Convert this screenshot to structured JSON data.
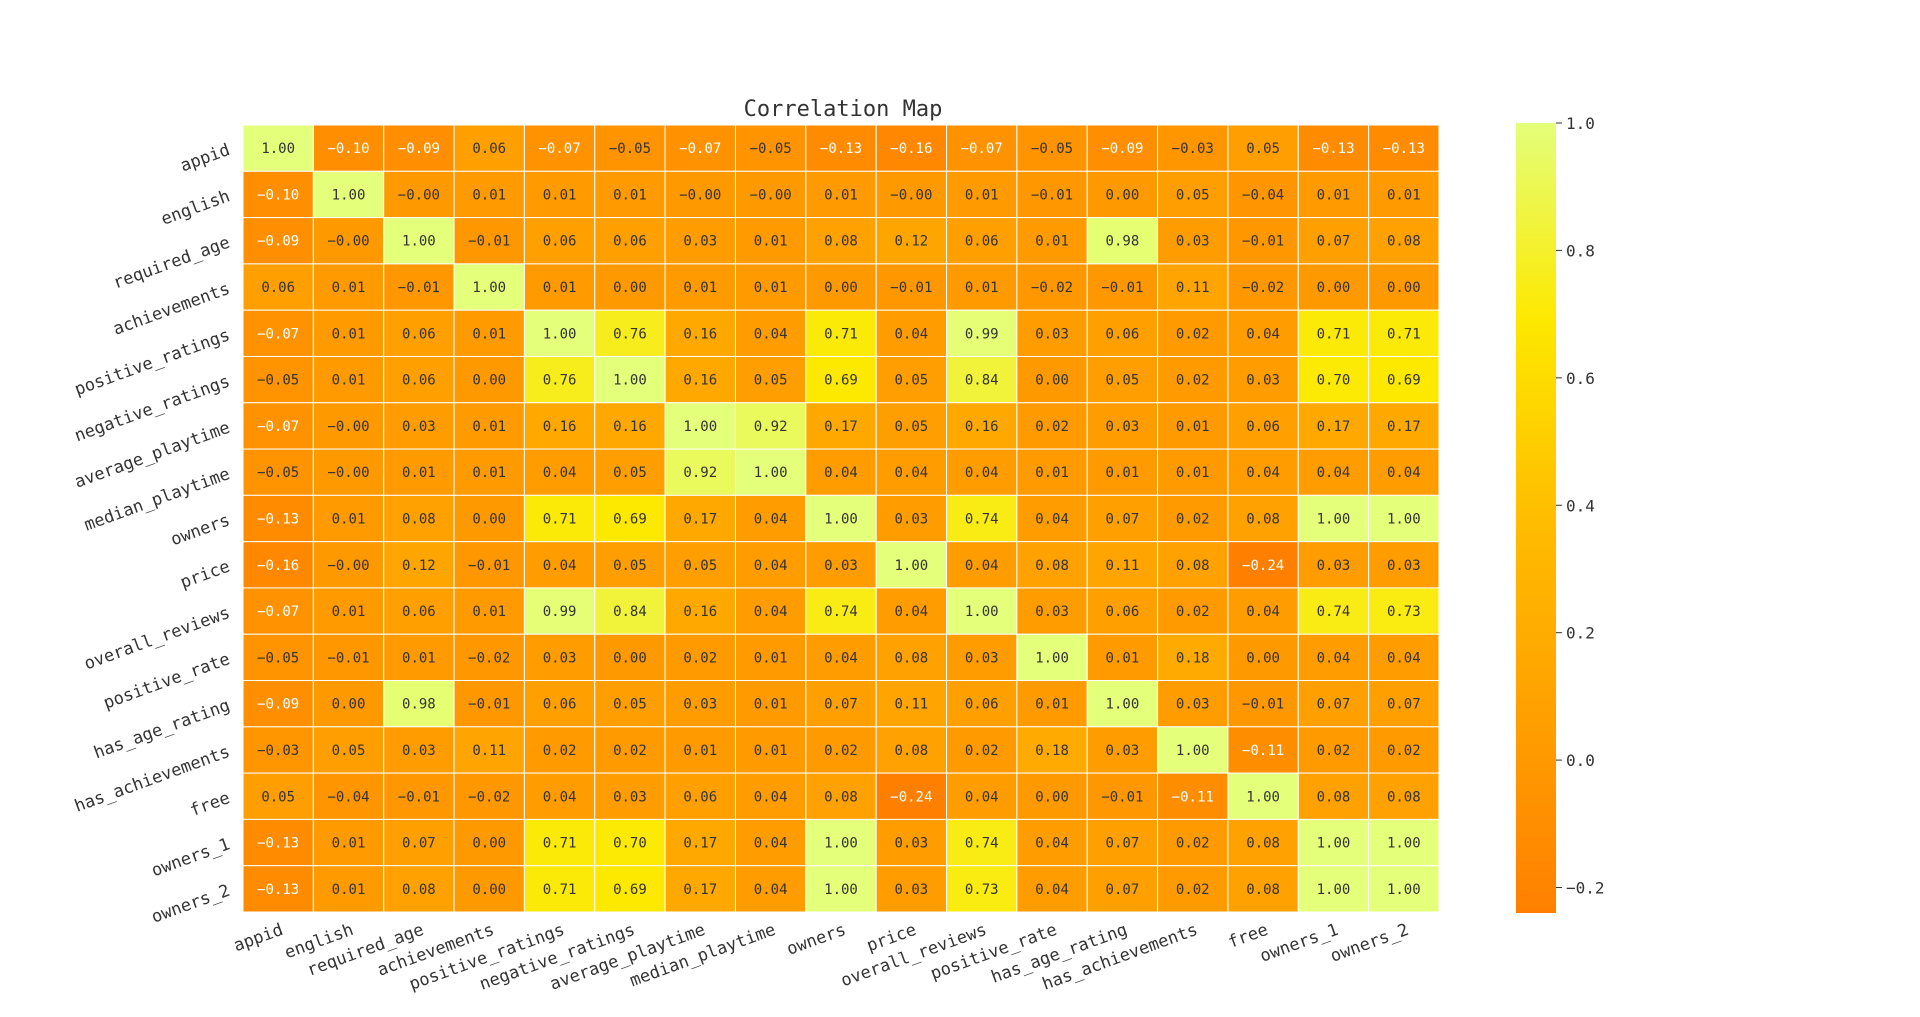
{
  "chart_data": {
    "type": "heatmap",
    "title": "Correlation Map",
    "value_format": "2 decimals",
    "labels": [
      "appid",
      "english",
      "required_age",
      "achievements",
      "positive_ratings",
      "negative_ratings",
      "average_playtime",
      "median_playtime",
      "owners",
      "price",
      "overall_reviews",
      "positive_rate",
      "has_age_rating",
      "has_achievements",
      "free",
      "owners_1",
      "owners_2"
    ],
    "values": [
      [
        1.0,
        -0.1,
        -0.09,
        0.06,
        -0.07,
        -0.05,
        -0.07,
        -0.05,
        -0.13,
        -0.16,
        -0.07,
        -0.05,
        -0.09,
        -0.03,
        0.05,
        -0.13,
        -0.13
      ],
      [
        -0.1,
        1.0,
        -0.0,
        0.01,
        0.01,
        0.01,
        -0.0,
        -0.0,
        0.01,
        -0.0,
        0.01,
        -0.01,
        0.0,
        0.05,
        -0.04,
        0.01,
        0.01
      ],
      [
        -0.09,
        -0.0,
        1.0,
        -0.01,
        0.06,
        0.06,
        0.03,
        0.01,
        0.08,
        0.12,
        0.06,
        0.01,
        0.98,
        0.03,
        -0.01,
        0.07,
        0.08
      ],
      [
        0.06,
        0.01,
        -0.01,
        1.0,
        0.01,
        0.0,
        0.01,
        0.01,
        0.0,
        -0.01,
        0.01,
        -0.02,
        -0.01,
        0.11,
        -0.02,
        0.0,
        0.0
      ],
      [
        -0.07,
        0.01,
        0.06,
        0.01,
        1.0,
        0.76,
        0.16,
        0.04,
        0.71,
        0.04,
        0.99,
        0.03,
        0.06,
        0.02,
        0.04,
        0.71,
        0.71
      ],
      [
        -0.05,
        0.01,
        0.06,
        0.0,
        0.76,
        1.0,
        0.16,
        0.05,
        0.69,
        0.05,
        0.84,
        0.0,
        0.05,
        0.02,
        0.03,
        0.7,
        0.69
      ],
      [
        -0.07,
        -0.0,
        0.03,
        0.01,
        0.16,
        0.16,
        1.0,
        0.92,
        0.17,
        0.05,
        0.16,
        0.02,
        0.03,
        0.01,
        0.06,
        0.17,
        0.17
      ],
      [
        -0.05,
        -0.0,
        0.01,
        0.01,
        0.04,
        0.05,
        0.92,
        1.0,
        0.04,
        0.04,
        0.04,
        0.01,
        0.01,
        0.01,
        0.04,
        0.04,
        0.04
      ],
      [
        -0.13,
        0.01,
        0.08,
        0.0,
        0.71,
        0.69,
        0.17,
        0.04,
        1.0,
        0.03,
        0.74,
        0.04,
        0.07,
        0.02,
        0.08,
        1.0,
        1.0
      ],
      [
        -0.16,
        -0.0,
        0.12,
        -0.01,
        0.04,
        0.05,
        0.05,
        0.04,
        0.03,
        1.0,
        0.04,
        0.08,
        0.11,
        0.08,
        -0.24,
        0.03,
        0.03
      ],
      [
        -0.07,
        0.01,
        0.06,
        0.01,
        0.99,
        0.84,
        0.16,
        0.04,
        0.74,
        0.04,
        1.0,
        0.03,
        0.06,
        0.02,
        0.04,
        0.74,
        0.73
      ],
      [
        -0.05,
        -0.01,
        0.01,
        -0.02,
        0.03,
        0.0,
        0.02,
        0.01,
        0.04,
        0.08,
        0.03,
        1.0,
        0.01,
        0.18,
        0.0,
        0.04,
        0.04
      ],
      [
        -0.09,
        0.0,
        0.98,
        -0.01,
        0.06,
        0.05,
        0.03,
        0.01,
        0.07,
        0.11,
        0.06,
        0.01,
        1.0,
        0.03,
        -0.01,
        0.07,
        0.07
      ],
      [
        -0.03,
        0.05,
        0.03,
        0.11,
        0.02,
        0.02,
        0.01,
        0.01,
        0.02,
        0.08,
        0.02,
        0.18,
        0.03,
        1.0,
        -0.11,
        0.02,
        0.02
      ],
      [
        0.05,
        -0.04,
        -0.01,
        -0.02,
        0.04,
        0.03,
        0.06,
        0.04,
        0.08,
        -0.24,
        0.04,
        0.0,
        -0.01,
        -0.11,
        1.0,
        0.08,
        0.08
      ],
      [
        -0.13,
        0.01,
        0.07,
        0.0,
        0.71,
        0.7,
        0.17,
        0.04,
        1.0,
        0.03,
        0.74,
        0.04,
        0.07,
        0.02,
        0.08,
        1.0,
        1.0
      ],
      [
        -0.13,
        0.01,
        0.08,
        0.0,
        0.71,
        0.69,
        0.17,
        0.04,
        1.0,
        0.03,
        0.73,
        0.04,
        0.07,
        0.02,
        0.08,
        1.0,
        1.0
      ]
    ],
    "colormap": "Wistia",
    "colormap_stops": [
      "#ff8000",
      "#ffa000",
      "#ffbd00",
      "#fde800",
      "#e4ff7a"
    ],
    "vmin": -0.24,
    "vmax": 1.0,
    "colorbar_ticks": [
      "1.0",
      "0.8",
      "0.6",
      "0.4",
      "0.2",
      "0.0",
      "−0.2"
    ],
    "colorbar_tick_values": [
      1.0,
      0.8,
      0.6,
      0.4,
      0.2,
      0.0,
      -0.2
    ],
    "cell_border_color": "#ffffff",
    "label_color_dark": "#333333",
    "label_color_light": "#ffffff"
  }
}
